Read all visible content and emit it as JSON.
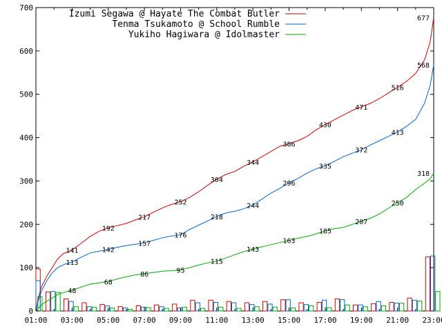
{
  "chart_data": {
    "type": "line",
    "x_ticks": [
      "01:00",
      "03:00",
      "05:00",
      "07:00",
      "09:00",
      "11:00",
      "13:00",
      "15:00",
      "17:00",
      "19:00",
      "21:00",
      "23:00"
    ],
    "y_ticks": [
      0,
      100,
      200,
      300,
      400,
      500,
      600,
      700
    ],
    "ylim": [
      0,
      700
    ],
    "xlim_hours": [
      1,
      23
    ],
    "grid": false,
    "legend_position": "top-left",
    "series": [
      {
        "name": "Izumi Segawa @ Hayate The Combat Butler",
        "color": "#cc0000",
        "points": [
          [
            1,
            0
          ],
          [
            1.1,
            25
          ],
          [
            1.3,
            55
          ],
          [
            1.6,
            80
          ],
          [
            1.9,
            100
          ],
          [
            2.2,
            120
          ],
          [
            2.5,
            132
          ],
          [
            3,
            141
          ],
          [
            3.5,
            156
          ],
          [
            4,
            172
          ],
          [
            4.5,
            184
          ],
          [
            5,
            192
          ],
          [
            5.5,
            197
          ],
          [
            6,
            202
          ],
          [
            6.5,
            210
          ],
          [
            7,
            217
          ],
          [
            7.5,
            228
          ],
          [
            8,
            238
          ],
          [
            8.5,
            246
          ],
          [
            9,
            252
          ],
          [
            9.5,
            262
          ],
          [
            10,
            275
          ],
          [
            10.5,
            290
          ],
          [
            11,
            304
          ],
          [
            11.5,
            315
          ],
          [
            12,
            322
          ],
          [
            12.5,
            334
          ],
          [
            13,
            344
          ],
          [
            13.5,
            356
          ],
          [
            14,
            368
          ],
          [
            14.5,
            380
          ],
          [
            15,
            386
          ],
          [
            15.5,
            393
          ],
          [
            16,
            403
          ],
          [
            16.5,
            418
          ],
          [
            17,
            430
          ],
          [
            17.5,
            441
          ],
          [
            18,
            452
          ],
          [
            18.5,
            463
          ],
          [
            19,
            471
          ],
          [
            19.5,
            479
          ],
          [
            20,
            490
          ],
          [
            20.5,
            503
          ],
          [
            21,
            516
          ],
          [
            21.5,
            530
          ],
          [
            22,
            548
          ],
          [
            22.5,
            580
          ],
          [
            22.8,
            620
          ],
          [
            23,
            677
          ]
        ],
        "labels": [
          [
            3,
            141
          ],
          [
            5,
            192
          ],
          [
            7,
            217
          ],
          [
            9,
            252
          ],
          [
            11,
            304
          ],
          [
            13,
            344
          ],
          [
            15,
            386
          ],
          [
            17,
            430
          ],
          [
            19,
            471
          ],
          [
            21,
            516
          ],
          [
            23,
            677
          ]
        ]
      },
      {
        "name": "Tenma Tsukamoto @ School Rumble",
        "color": "#0066cc",
        "points": [
          [
            1,
            0
          ],
          [
            1.1,
            20
          ],
          [
            1.3,
            45
          ],
          [
            1.6,
            70
          ],
          [
            1.9,
            88
          ],
          [
            2.2,
            100
          ],
          [
            2.6,
            108
          ],
          [
            3,
            113
          ],
          [
            3.5,
            124
          ],
          [
            4,
            134
          ],
          [
            4.5,
            138
          ],
          [
            5,
            142
          ],
          [
            5.5,
            147
          ],
          [
            6,
            151
          ],
          [
            6.5,
            154
          ],
          [
            7,
            157
          ],
          [
            7.5,
            163
          ],
          [
            8,
            169
          ],
          [
            8.5,
            173
          ],
          [
            9,
            176
          ],
          [
            9.5,
            188
          ],
          [
            10,
            198
          ],
          [
            10.5,
            208
          ],
          [
            11,
            218
          ],
          [
            11.5,
            226
          ],
          [
            12,
            230
          ],
          [
            12.5,
            236
          ],
          [
            13,
            244
          ],
          [
            13.5,
            258
          ],
          [
            14,
            272
          ],
          [
            14.5,
            283
          ],
          [
            15,
            296
          ],
          [
            15.5,
            306
          ],
          [
            16,
            318
          ],
          [
            16.5,
            328
          ],
          [
            17,
            335
          ],
          [
            17.5,
            345
          ],
          [
            18,
            356
          ],
          [
            18.5,
            364
          ],
          [
            19,
            372
          ],
          [
            19.5,
            383
          ],
          [
            20,
            393
          ],
          [
            20.5,
            403
          ],
          [
            21,
            413
          ],
          [
            21.5,
            426
          ],
          [
            22,
            442
          ],
          [
            22.5,
            480
          ],
          [
            22.8,
            520
          ],
          [
            23,
            568
          ]
        ],
        "labels": [
          [
            3,
            113
          ],
          [
            5,
            142
          ],
          [
            7,
            157
          ],
          [
            9,
            176
          ],
          [
            11,
            218
          ],
          [
            13,
            244
          ],
          [
            15,
            296
          ],
          [
            17,
            335
          ],
          [
            19,
            372
          ],
          [
            21,
            413
          ],
          [
            23,
            568
          ]
        ]
      },
      {
        "name": "Yukiho Hagiwara @ Idolmaster",
        "color": "#00aa00",
        "points": [
          [
            1,
            0
          ],
          [
            1.2,
            10
          ],
          [
            1.5,
            20
          ],
          [
            1.9,
            30
          ],
          [
            2.3,
            40
          ],
          [
            3,
            48
          ],
          [
            3.5,
            55
          ],
          [
            4,
            62
          ],
          [
            4.5,
            65
          ],
          [
            5,
            68
          ],
          [
            5.5,
            74
          ],
          [
            6,
            79
          ],
          [
            6.5,
            83
          ],
          [
            7,
            86
          ],
          [
            7.5,
            89
          ],
          [
            8,
            92
          ],
          [
            8.5,
            93
          ],
          [
            9,
            95
          ],
          [
            9.5,
            100
          ],
          [
            10,
            106
          ],
          [
            10.5,
            111
          ],
          [
            11,
            115
          ],
          [
            11.5,
            122
          ],
          [
            12,
            130
          ],
          [
            12.5,
            137
          ],
          [
            13,
            143
          ],
          [
            13.5,
            148
          ],
          [
            14,
            153
          ],
          [
            14.5,
            158
          ],
          [
            15,
            163
          ],
          [
            15.5,
            168
          ],
          [
            16,
            172
          ],
          [
            16.5,
            178
          ],
          [
            17,
            185
          ],
          [
            17.5,
            190
          ],
          [
            18,
            193
          ],
          [
            18.5,
            200
          ],
          [
            19,
            207
          ],
          [
            19.5,
            214
          ],
          [
            20,
            224
          ],
          [
            20.5,
            237
          ],
          [
            21,
            250
          ],
          [
            21.5,
            262
          ],
          [
            22,
            280
          ],
          [
            22.5,
            295
          ],
          [
            22.8,
            305
          ],
          [
            23,
            318
          ]
        ],
        "labels": [
          [
            3,
            48
          ],
          [
            5,
            68
          ],
          [
            7,
            86
          ],
          [
            9,
            95
          ],
          [
            11,
            115
          ],
          [
            13,
            143
          ],
          [
            15,
            163
          ],
          [
            17,
            185
          ],
          [
            19,
            207
          ],
          [
            21,
            250
          ],
          [
            23,
            318
          ]
        ]
      }
    ],
    "hourly_bars": [
      [
        97,
        70,
        33
      ],
      [
        44,
        45,
        43
      ],
      [
        28,
        22,
        10
      ],
      [
        19,
        10,
        9
      ],
      [
        15,
        12,
        7
      ],
      [
        10,
        7,
        4
      ],
      [
        12,
        9,
        8
      ],
      [
        14,
        10,
        6
      ],
      [
        16,
        7,
        9
      ],
      [
        25,
        19,
        6
      ],
      [
        25,
        20,
        9
      ],
      [
        22,
        19,
        6
      ],
      [
        19,
        15,
        10
      ],
      [
        22,
        16,
        9
      ],
      [
        26,
        26,
        7
      ],
      [
        19,
        15,
        12
      ],
      [
        20,
        25,
        8
      ],
      [
        28,
        26,
        14
      ],
      [
        14,
        14,
        10
      ],
      [
        17,
        22,
        12
      ],
      [
        20,
        18,
        18
      ],
      [
        30,
        25,
        23
      ],
      [
        125,
        127,
        45
      ]
    ],
    "hourly_bars_start_hour": 0.5
  }
}
